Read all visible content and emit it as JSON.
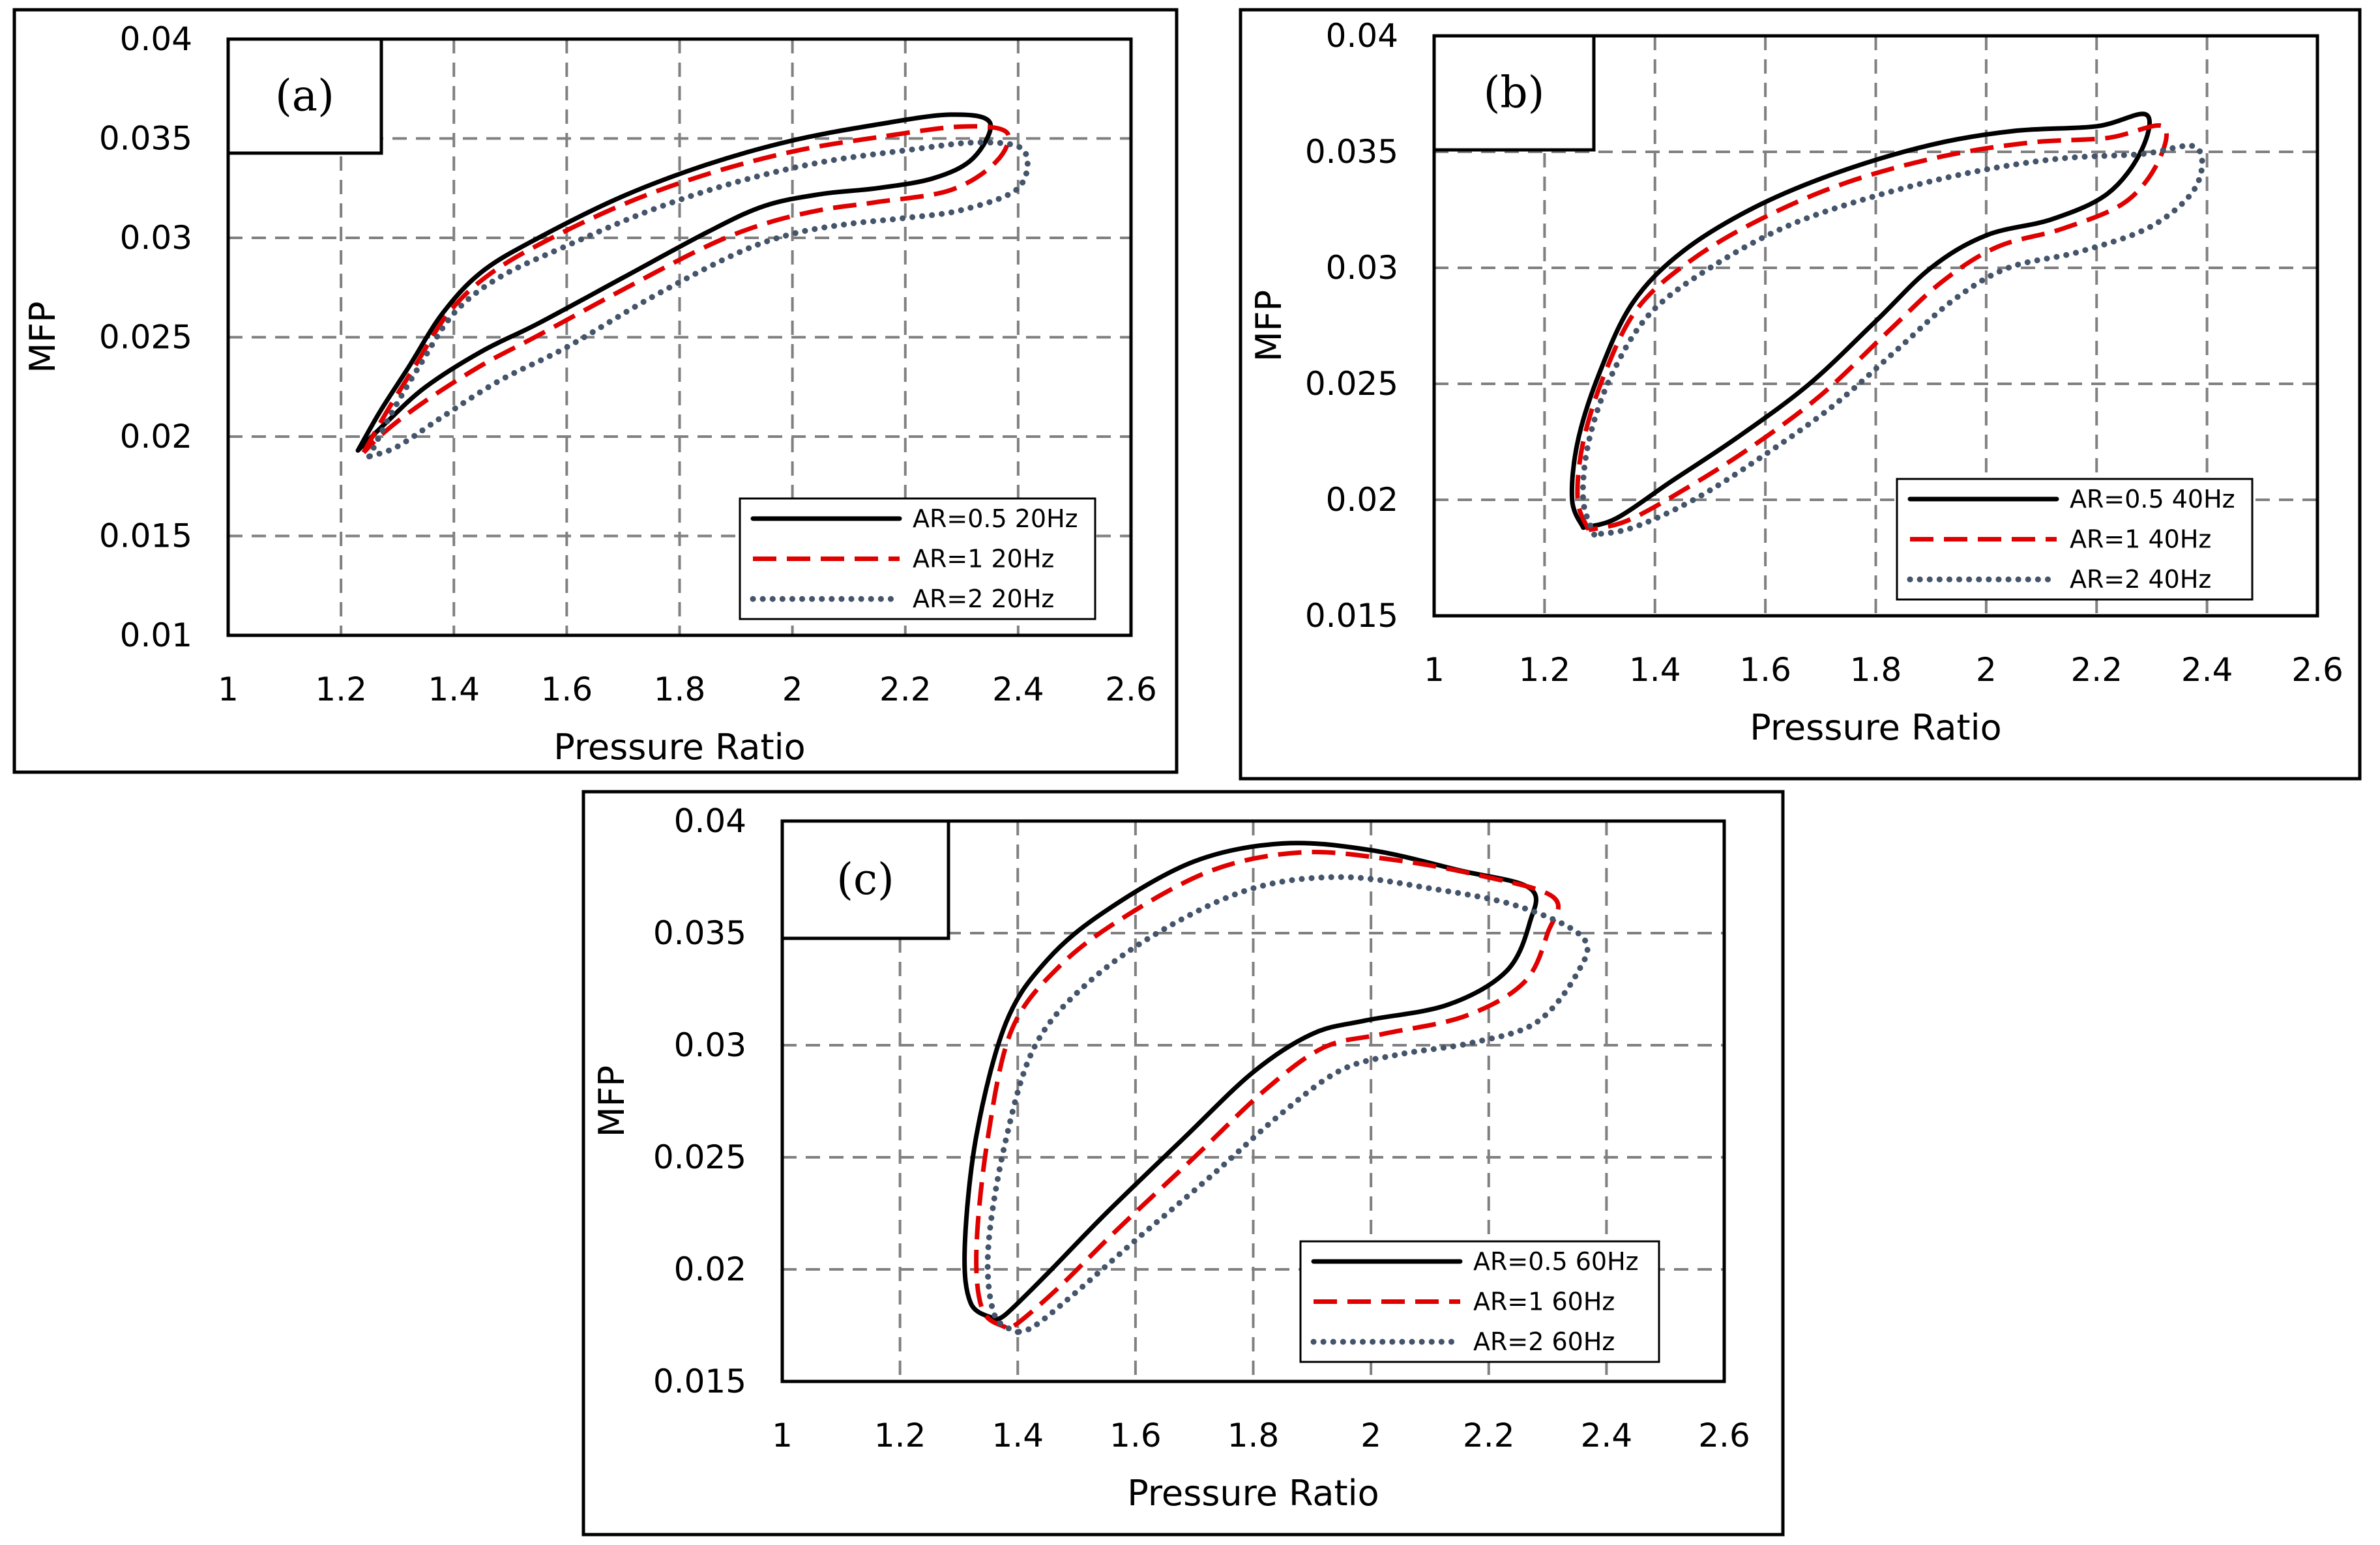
{
  "figure": {
    "colors": {
      "ar05": "#000000",
      "ar1": "#e00000",
      "ar2": "#44546a",
      "grid": "#808080"
    }
  },
  "chart_data": [
    {
      "type": "line",
      "panel_label": "(a)",
      "xlabel": "Pressure Ratio",
      "ylabel": "MFP",
      "xlim": [
        1,
        2.6
      ],
      "ylim": [
        0.01,
        0.04
      ],
      "xticks": [
        1,
        1.2,
        1.4,
        1.6,
        1.8,
        2,
        2.2,
        2.4,
        2.6
      ],
      "xtick_labels": [
        "1",
        "1.2",
        "1.4",
        "1.6",
        "1.8",
        "2",
        "2.2",
        "2.4",
        "2.6"
      ],
      "yticks": [
        0.01,
        0.015,
        0.02,
        0.025,
        0.03,
        0.035,
        0.04
      ],
      "ytick_labels": [
        "0.01",
        "0.015",
        "0.02",
        "0.025",
        "0.03",
        "0.035",
        "0.04"
      ],
      "grid": true,
      "legend_position": "bottom-right",
      "series": [
        {
          "name": "AR=0.5 20Hz",
          "style": "solid",
          "points": [
            [
              1.23,
              0.0193
            ],
            [
              1.27,
              0.0213
            ],
            [
              1.32,
              0.0235
            ],
            [
              1.38,
              0.0262
            ],
            [
              1.45,
              0.0283
            ],
            [
              1.55,
              0.03
            ],
            [
              1.7,
              0.0321
            ],
            [
              1.85,
              0.0337
            ],
            [
              2.0,
              0.0349
            ],
            [
              2.15,
              0.0357
            ],
            [
              2.28,
              0.0362
            ],
            [
              2.35,
              0.0358
            ],
            [
              2.32,
              0.034
            ],
            [
              2.25,
              0.033
            ],
            [
              2.15,
              0.0325
            ],
            [
              2.05,
              0.0322
            ],
            [
              1.95,
              0.0316
            ],
            [
              1.85,
              0.0303
            ],
            [
              1.7,
              0.028
            ],
            [
              1.55,
              0.0257
            ],
            [
              1.45,
              0.0243
            ],
            [
              1.35,
              0.0225
            ],
            [
              1.28,
              0.0207
            ],
            [
              1.23,
              0.0193
            ]
          ]
        },
        {
          "name": "AR=1 20Hz",
          "style": "dashed",
          "points": [
            [
              1.24,
              0.0192
            ],
            [
              1.28,
              0.0212
            ],
            [
              1.33,
              0.0235
            ],
            [
              1.39,
              0.0262
            ],
            [
              1.46,
              0.0281
            ],
            [
              1.56,
              0.0298
            ],
            [
              1.71,
              0.0318
            ],
            [
              1.86,
              0.0333
            ],
            [
              2.01,
              0.0344
            ],
            [
              2.16,
              0.0351
            ],
            [
              2.3,
              0.0356
            ],
            [
              2.38,
              0.0353
            ],
            [
              2.36,
              0.0338
            ],
            [
              2.28,
              0.0324
            ],
            [
              2.15,
              0.0318
            ],
            [
              2.05,
              0.0314
            ],
            [
              1.95,
              0.0307
            ],
            [
              1.85,
              0.0296
            ],
            [
              1.7,
              0.0274
            ],
            [
              1.55,
              0.0251
            ],
            [
              1.45,
              0.0236
            ],
            [
              1.35,
              0.0218
            ],
            [
              1.28,
              0.0203
            ],
            [
              1.24,
              0.0192
            ]
          ]
        },
        {
          "name": "AR=2 20Hz",
          "style": "dotted",
          "points": [
            [
              1.25,
              0.019
            ],
            [
              1.29,
              0.0212
            ],
            [
              1.34,
              0.0236
            ],
            [
              1.4,
              0.0262
            ],
            [
              1.48,
              0.028
            ],
            [
              1.6,
              0.0296
            ],
            [
              1.75,
              0.0314
            ],
            [
              1.9,
              0.0328
            ],
            [
              2.05,
              0.0338
            ],
            [
              2.2,
              0.0344
            ],
            [
              2.33,
              0.0348
            ],
            [
              2.41,
              0.0344
            ],
            [
              2.4,
              0.0325
            ],
            [
              2.3,
              0.0314
            ],
            [
              2.2,
              0.031
            ],
            [
              2.1,
              0.0307
            ],
            [
              2.0,
              0.0302
            ],
            [
              1.9,
              0.0292
            ],
            [
              1.75,
              0.027
            ],
            [
              1.6,
              0.0245
            ],
            [
              1.48,
              0.0228
            ],
            [
              1.38,
              0.021
            ],
            [
              1.3,
              0.0195
            ],
            [
              1.25,
              0.019
            ]
          ]
        }
      ]
    },
    {
      "type": "line",
      "panel_label": "(b)",
      "xlabel": "Pressure Ratio",
      "ylabel": "MFP",
      "xlim": [
        1,
        2.6
      ],
      "ylim": [
        0.015,
        0.04
      ],
      "xticks": [
        1,
        1.2,
        1.4,
        1.6,
        1.8,
        2,
        2.2,
        2.4,
        2.6
      ],
      "xtick_labels": [
        "1",
        "1.2",
        "1.4",
        "1.6",
        "1.8",
        "2",
        "2.2",
        "2.4",
        "2.6"
      ],
      "yticks": [
        0.015,
        0.02,
        0.025,
        0.03,
        0.035,
        0.04
      ],
      "ytick_labels": [
        "0.015",
        "0.02",
        "0.025",
        "0.03",
        "0.035",
        "0.04"
      ],
      "grid": true,
      "legend_position": "bottom-right",
      "series": [
        {
          "name": "AR=0.5 40Hz",
          "style": "solid",
          "points": [
            [
              1.27,
              0.0188
            ],
            [
              1.25,
              0.02
            ],
            [
              1.26,
              0.0225
            ],
            [
              1.3,
              0.0255
            ],
            [
              1.36,
              0.0285
            ],
            [
              1.45,
              0.0307
            ],
            [
              1.58,
              0.0326
            ],
            [
              1.73,
              0.0341
            ],
            [
              1.9,
              0.0353
            ],
            [
              2.05,
              0.0359
            ],
            [
              2.2,
              0.0361
            ],
            [
              2.29,
              0.0366
            ],
            [
              2.28,
              0.035
            ],
            [
              2.22,
              0.0332
            ],
            [
              2.12,
              0.0321
            ],
            [
              2.0,
              0.0314
            ],
            [
              1.9,
              0.03
            ],
            [
              1.8,
              0.0277
            ],
            [
              1.68,
              0.025
            ],
            [
              1.55,
              0.0227
            ],
            [
              1.43,
              0.0208
            ],
            [
              1.33,
              0.0192
            ],
            [
              1.27,
              0.0188
            ]
          ]
        },
        {
          "name": "AR=1 40Hz",
          "style": "dashed",
          "points": [
            [
              1.28,
              0.0187
            ],
            [
              1.26,
              0.02
            ],
            [
              1.27,
              0.0225
            ],
            [
              1.31,
              0.0255
            ],
            [
              1.37,
              0.0283
            ],
            [
              1.47,
              0.0304
            ],
            [
              1.6,
              0.0322
            ],
            [
              1.75,
              0.0337
            ],
            [
              1.92,
              0.0348
            ],
            [
              2.08,
              0.0354
            ],
            [
              2.22,
              0.0356
            ],
            [
              2.32,
              0.0361
            ],
            [
              2.31,
              0.0345
            ],
            [
              2.25,
              0.0328
            ],
            [
              2.14,
              0.0317
            ],
            [
              2.02,
              0.0309
            ],
            [
              1.92,
              0.0294
            ],
            [
              1.82,
              0.0272
            ],
            [
              1.7,
              0.0245
            ],
            [
              1.57,
              0.0222
            ],
            [
              1.45,
              0.0204
            ],
            [
              1.35,
              0.0191
            ],
            [
              1.28,
              0.0187
            ]
          ]
        },
        {
          "name": "AR=2 40Hz",
          "style": "dotted",
          "points": [
            [
              1.29,
              0.0185
            ],
            [
              1.27,
              0.02
            ],
            [
              1.28,
              0.0225
            ],
            [
              1.32,
              0.0253
            ],
            [
              1.39,
              0.028
            ],
            [
              1.5,
              0.03
            ],
            [
              1.64,
              0.0318
            ],
            [
              1.8,
              0.0331
            ],
            [
              1.97,
              0.0341
            ],
            [
              2.13,
              0.0347
            ],
            [
              2.28,
              0.0349
            ],
            [
              2.38,
              0.0352
            ],
            [
              2.38,
              0.0335
            ],
            [
              2.3,
              0.0318
            ],
            [
              2.17,
              0.0307
            ],
            [
              2.04,
              0.03
            ],
            [
              1.94,
              0.0286
            ],
            [
              1.84,
              0.0265
            ],
            [
              1.72,
              0.024
            ],
            [
              1.59,
              0.0218
            ],
            [
              1.47,
              0.02
            ],
            [
              1.36,
              0.0188
            ],
            [
              1.29,
              0.0185
            ]
          ]
        }
      ]
    },
    {
      "type": "line",
      "panel_label": "(c)",
      "xlabel": "Pressure Ratio",
      "ylabel": "MFP",
      "xlim": [
        1,
        2.6
      ],
      "ylim": [
        0.015,
        0.04
      ],
      "xticks": [
        1,
        1.2,
        1.4,
        1.6,
        1.8,
        2,
        2.2,
        2.4,
        2.6
      ],
      "xtick_labels": [
        "1",
        "1.2",
        "1.4",
        "1.6",
        "1.8",
        "2",
        "2.2",
        "2.4",
        "2.6"
      ],
      "yticks": [
        0.015,
        0.02,
        0.025,
        0.03,
        0.035,
        0.04
      ],
      "ytick_labels": [
        "0.015",
        "0.02",
        "0.025",
        "0.03",
        "0.035",
        "0.04"
      ],
      "grid": true,
      "legend_position": "bottom-right",
      "series": [
        {
          "name": "AR=0.5 60Hz",
          "style": "solid",
          "points": [
            [
              1.36,
              0.0178
            ],
            [
              1.32,
              0.0185
            ],
            [
              1.31,
              0.021
            ],
            [
              1.33,
              0.026
            ],
            [
              1.38,
              0.031
            ],
            [
              1.45,
              0.0338
            ],
            [
              1.55,
              0.036
            ],
            [
              1.7,
              0.0382
            ],
            [
              1.85,
              0.039
            ],
            [
              2.0,
              0.0387
            ],
            [
              2.15,
              0.0378
            ],
            [
              2.27,
              0.037
            ],
            [
              2.27,
              0.0355
            ],
            [
              2.23,
              0.0333
            ],
            [
              2.13,
              0.0318
            ],
            [
              1.99,
              0.0311
            ],
            [
              1.9,
              0.0305
            ],
            [
              1.8,
              0.0288
            ],
            [
              1.68,
              0.0258
            ],
            [
              1.55,
              0.0225
            ],
            [
              1.45,
              0.0198
            ],
            [
              1.38,
              0.018
            ],
            [
              1.36,
              0.0178
            ]
          ]
        },
        {
          "name": "AR=1 60Hz",
          "style": "dashed",
          "points": [
            [
              1.38,
              0.0174
            ],
            [
              1.34,
              0.0182
            ],
            [
              1.33,
              0.021
            ],
            [
              1.35,
              0.026
            ],
            [
              1.39,
              0.0307
            ],
            [
              1.47,
              0.0335
            ],
            [
              1.58,
              0.0357
            ],
            [
              1.73,
              0.0378
            ],
            [
              1.88,
              0.0386
            ],
            [
              2.03,
              0.0383
            ],
            [
              2.18,
              0.0376
            ],
            [
              2.31,
              0.0366
            ],
            [
              2.3,
              0.035
            ],
            [
              2.26,
              0.0328
            ],
            [
              2.16,
              0.0313
            ],
            [
              2.02,
              0.0305
            ],
            [
              1.92,
              0.0299
            ],
            [
              1.82,
              0.028
            ],
            [
              1.7,
              0.025
            ],
            [
              1.57,
              0.0218
            ],
            [
              1.47,
              0.0192
            ],
            [
              1.4,
              0.0176
            ],
            [
              1.38,
              0.0174
            ]
          ]
        },
        {
          "name": "AR=2 60Hz",
          "style": "dotted",
          "points": [
            [
              1.4,
              0.0172
            ],
            [
              1.36,
              0.018
            ],
            [
              1.35,
              0.021
            ],
            [
              1.38,
              0.0258
            ],
            [
              1.43,
              0.03
            ],
            [
              1.52,
              0.0328
            ],
            [
              1.65,
              0.0352
            ],
            [
              1.8,
              0.037
            ],
            [
              1.95,
              0.0375
            ],
            [
              2.1,
              0.037
            ],
            [
              2.25,
              0.0362
            ],
            [
              2.36,
              0.0348
            ],
            [
              2.35,
              0.0332
            ],
            [
              2.28,
              0.031
            ],
            [
              2.17,
              0.0301
            ],
            [
              2.05,
              0.0296
            ],
            [
              1.95,
              0.0289
            ],
            [
              1.85,
              0.027
            ],
            [
              1.73,
              0.0242
            ],
            [
              1.6,
              0.0213
            ],
            [
              1.5,
              0.019
            ],
            [
              1.43,
              0.0175
            ],
            [
              1.4,
              0.0172
            ]
          ]
        }
      ]
    }
  ]
}
